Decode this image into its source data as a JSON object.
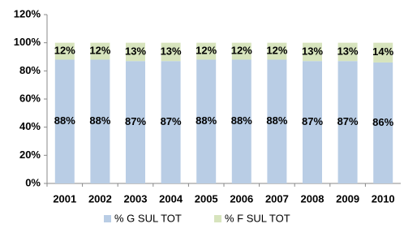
{
  "chart_data": {
    "type": "stacked_bar",
    "categories": [
      "2001",
      "2002",
      "2003",
      "2004",
      "2005",
      "2006",
      "2007",
      "2008",
      "2009",
      "2010"
    ],
    "series": [
      {
        "name": "% G SUL TOT",
        "color": "#b9cde5",
        "values": [
          88,
          88,
          87,
          87,
          88,
          88,
          88,
          87,
          87,
          86
        ],
        "value_labels": [
          "88%",
          "88%",
          "87%",
          "87%",
          "88%",
          "88%",
          "88%",
          "87%",
          "87%",
          "86%"
        ]
      },
      {
        "name": "% F SUL TOT",
        "color": "#d7e4bd",
        "values": [
          12,
          12,
          13,
          13,
          12,
          12,
          12,
          13,
          13,
          14
        ],
        "value_labels": [
          "12%",
          "12%",
          "13%",
          "13%",
          "12%",
          "12%",
          "12%",
          "13%",
          "13%",
          "14%"
        ]
      }
    ],
    "ylim": [
      0,
      120
    ],
    "yticks": [
      {
        "value": 0,
        "label": "0%"
      },
      {
        "value": 20,
        "label": "20%"
      },
      {
        "value": 40,
        "label": "40%"
      },
      {
        "value": 60,
        "label": "60%"
      },
      {
        "value": 80,
        "label": "80%"
      },
      {
        "value": 100,
        "label": "100%"
      },
      {
        "value": 120,
        "label": "120%"
      }
    ],
    "grid": false,
    "legend": "bottom"
  }
}
